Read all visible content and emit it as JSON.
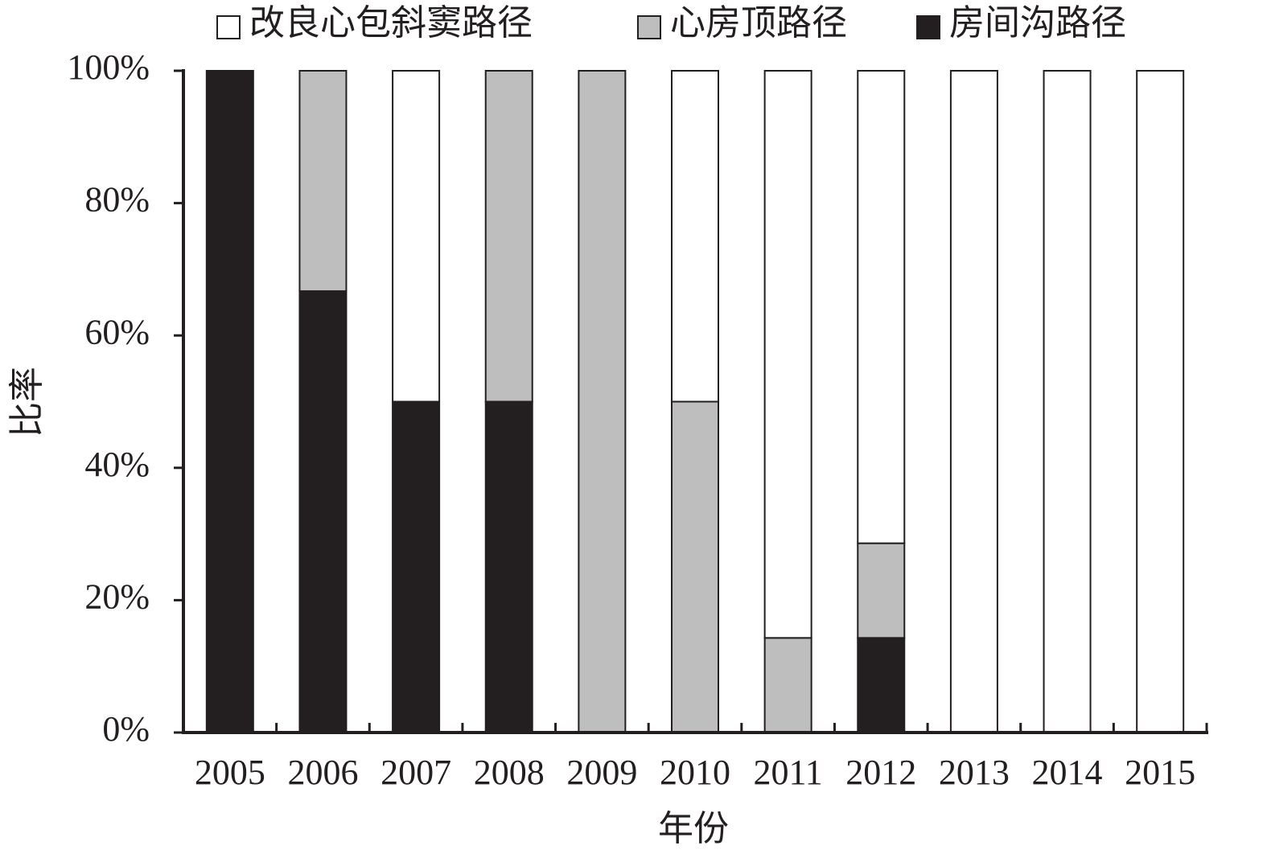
{
  "chart_data": {
    "type": "stacked_bar",
    "x_label": "年份",
    "y_label": "比率",
    "categories": [
      "2005",
      "2006",
      "2007",
      "2008",
      "2009",
      "2010",
      "2011",
      "2012",
      "2013",
      "2014",
      "2015"
    ],
    "series": [
      {
        "name": "改良心包斜窦路径",
        "color": "#ffffff",
        "values": [
          0,
          0,
          50,
          0,
          0,
          50,
          85.7,
          71.4,
          100,
          100,
          100
        ]
      },
      {
        "name": "心房顶路径",
        "color": "#bebebe",
        "values": [
          0,
          33.3,
          0,
          50,
          100,
          50,
          14.3,
          14.3,
          0,
          0,
          0
        ]
      },
      {
        "name": "房间沟路径",
        "color": "#231f20",
        "values": [
          100,
          66.7,
          50,
          50,
          0,
          0,
          0,
          14.3,
          0,
          0,
          0
        ]
      }
    ],
    "ylim": [
      0,
      100
    ],
    "yticks": [
      {
        "value": 0,
        "label": "0%"
      },
      {
        "value": 20,
        "label": "20%"
      },
      {
        "value": 40,
        "label": "40%"
      },
      {
        "value": 60,
        "label": "60%"
      },
      {
        "value": 80,
        "label": "80%"
      },
      {
        "value": 100,
        "label": "100%"
      }
    ],
    "legend": "top"
  }
}
